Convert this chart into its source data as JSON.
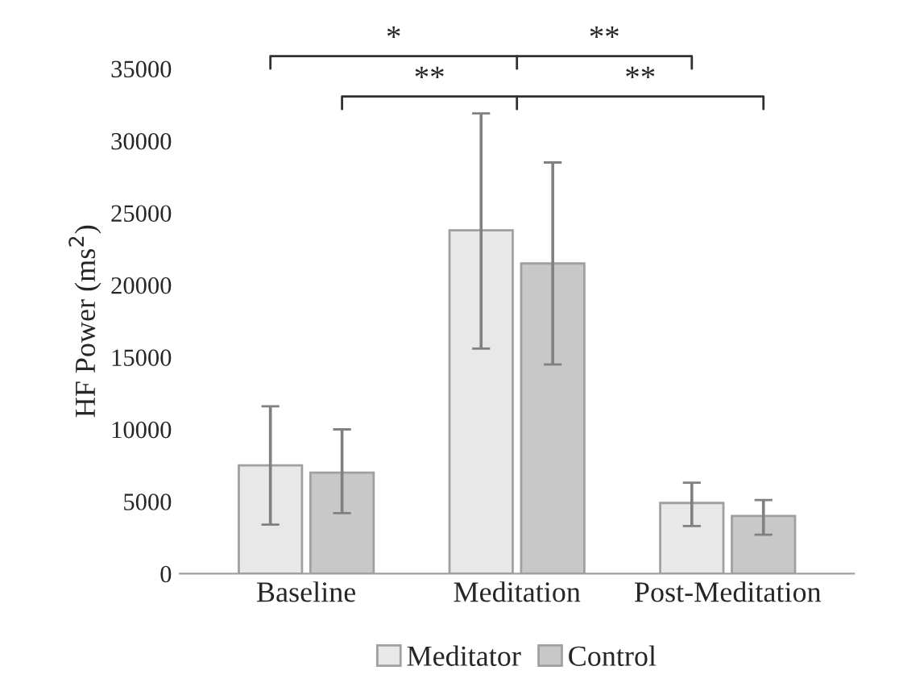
{
  "chart_data": {
    "type": "bar",
    "ylabel": "HF Power (ms$^{2}$)",
    "categories": [
      "Baseline",
      "Meditation",
      "Post-Meditation"
    ],
    "series": [
      {
        "name": "Meditator",
        "color": "#e8e8e8",
        "values": [
          7500,
          23800,
          4900
        ],
        "errors": [
          [
            3400,
            11600
          ],
          [
            15600,
            31900
          ],
          [
            3300,
            6300
          ]
        ]
      },
      {
        "name": "Control",
        "color": "#c8c8c8",
        "values": [
          7000,
          21500,
          4000
        ],
        "errors": [
          [
            4200,
            10000
          ],
          [
            14500,
            28500
          ],
          [
            2700,
            5100
          ]
        ]
      }
    ],
    "ylim": [
      0,
      35000
    ],
    "yticks": [
      0,
      5000,
      10000,
      15000,
      20000,
      25000,
      30000,
      35000
    ],
    "grid": false,
    "legend": "bottom",
    "annotations": [
      "*",
      "**",
      "**",
      "**"
    ]
  }
}
